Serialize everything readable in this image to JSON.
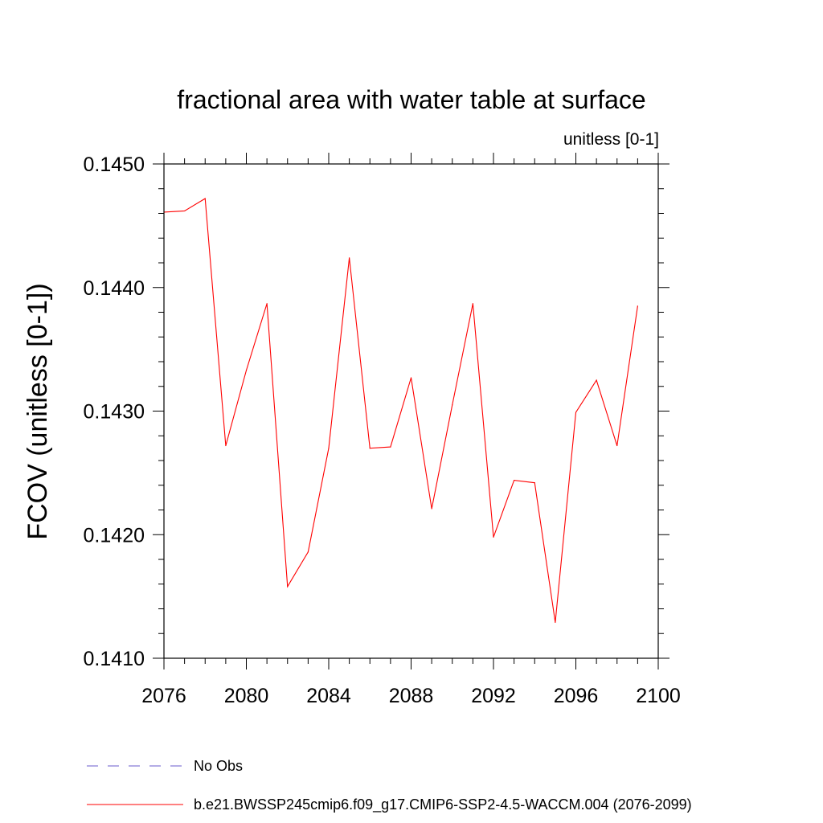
{
  "chart_data": {
    "type": "line",
    "title": "fractional area with water table at surface",
    "subtitle": "unitless [0-1]",
    "xlabel": "",
    "ylabel": "FCOV  (unitless [0-1])",
    "xlim": [
      2076,
      2100
    ],
    "ylim": [
      0.141,
      0.145
    ],
    "x_ticks": [
      2076,
      2080,
      2084,
      2088,
      2092,
      2096,
      2100
    ],
    "x_tick_labels": [
      "2076",
      "2080",
      "2084",
      "2088",
      "2092",
      "2096",
      "2100"
    ],
    "y_ticks": [
      0.141,
      0.142,
      0.143,
      0.144,
      0.145
    ],
    "y_tick_labels": [
      "0.1410",
      "0.1420",
      "0.1430",
      "0.1440",
      "0.1450"
    ],
    "grid": false,
    "series": [
      {
        "name": "b.e21.BWSSP245cmip6.f09_g17.CMIP6-SSP2-4.5-WACCM.004 (2076-2099)",
        "color": "#ff0000",
        "style": "solid",
        "x": [
          2076,
          2077,
          2078,
          2079,
          2080,
          2081,
          2082,
          2083,
          2084,
          2085,
          2086,
          2087,
          2088,
          2089,
          2090,
          2091,
          2092,
          2093,
          2094,
          2095,
          2096,
          2097,
          2098,
          2099
        ],
        "values": [
          0.14461,
          0.14462,
          0.14472,
          0.14272,
          0.14333,
          0.14387,
          0.14158,
          0.14186,
          0.1427,
          0.14424,
          0.1427,
          0.14271,
          0.14327,
          0.14221,
          0.14305,
          0.14387,
          0.14198,
          0.14244,
          0.14242,
          0.14129,
          0.14299,
          0.14325,
          0.14272,
          0.14385
        ]
      }
    ],
    "legend": [
      {
        "label": "No Obs",
        "color": "#6a5acd",
        "style": "dashed"
      },
      {
        "label": "b.e21.BWSSP245cmip6.f09_g17.CMIP6-SSP2-4.5-WACCM.004 (2076-2099)",
        "color": "#ff0000",
        "style": "solid"
      }
    ]
  }
}
